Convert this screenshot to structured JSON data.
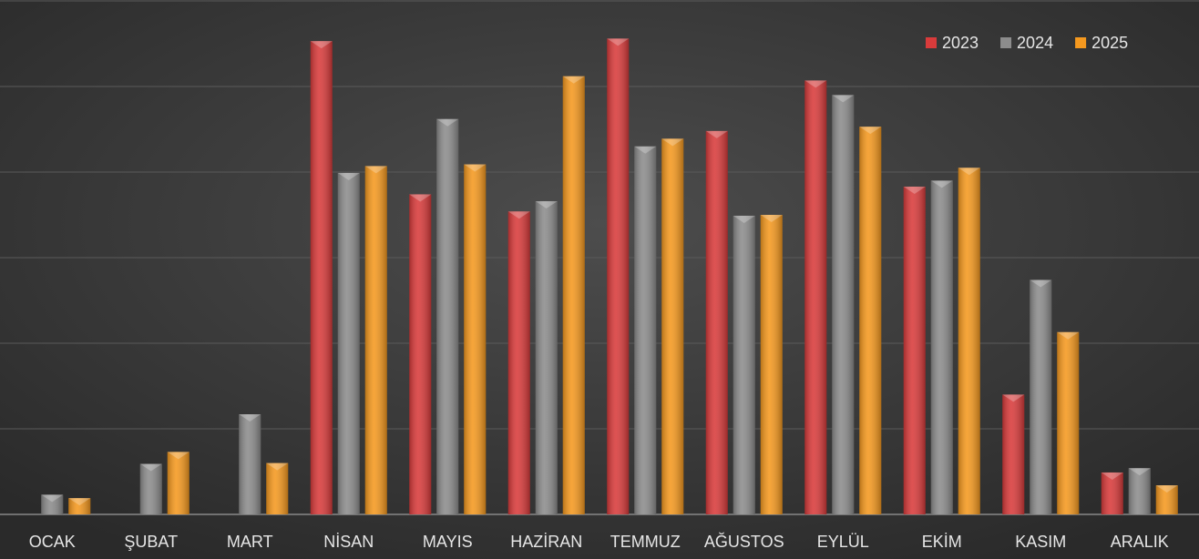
{
  "chart_data": {
    "type": "bar",
    "categories": [
      "OCAK",
      "ŞUBAT",
      "MART",
      "NİSAN",
      "MAYIS",
      "HAZİRAN",
      "TEMMUZ",
      "AĞUSTOS",
      "EYLÜL",
      "EKİM",
      "KASIM",
      "ARALIK"
    ],
    "series": [
      {
        "name": "2023",
        "color": "#d93b3b",
        "values": [
          null,
          null,
          null,
          5.53,
          3.74,
          3.54,
          5.56,
          4.48,
          5.07,
          3.83,
          1.4,
          0.49
        ]
      },
      {
        "name": "2024",
        "color": "#8c8c8c",
        "values": [
          0.23,
          0.59,
          1.17,
          3.99,
          4.62,
          3.66,
          4.3,
          3.49,
          4.9,
          3.9,
          2.74,
          0.54
        ]
      },
      {
        "name": "2025",
        "color": "#f5991f",
        "values": [
          0.19,
          0.73,
          0.6,
          4.07,
          4.09,
          5.12,
          4.39,
          3.5,
          4.53,
          4.05,
          2.13,
          0.34
        ]
      }
    ],
    "ylim": [
      0,
      6
    ],
    "yticks": [
      0,
      1,
      2,
      3,
      4,
      5,
      6
    ],
    "grid": true,
    "legend": "top-right"
  }
}
